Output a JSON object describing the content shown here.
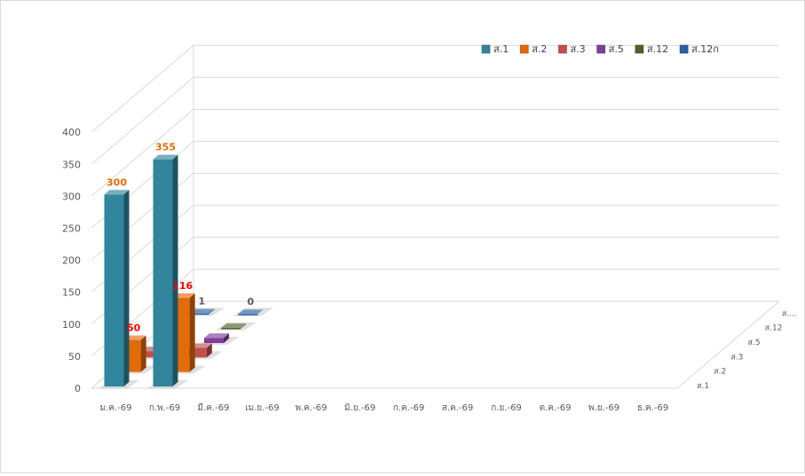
{
  "chart_data": {
    "type": "bar",
    "variant": "3d-column",
    "categories": [
      "ม.ค.-69",
      "ก.พ.-69",
      "มี.ค.-69",
      "เม.ย.-69",
      "พ.ค.-69",
      "มิ.ย.-69",
      "ก.ค.-69",
      "ส.ค.-69",
      "ก.ย.-69",
      "ต.ค.-69",
      "พ.ย.-69",
      "ธ.ค.-69"
    ],
    "series": [
      {
        "name": "ส.1",
        "color": "#31859c",
        "values": [
          300,
          355,
          null,
          null,
          null,
          null,
          null,
          null,
          null,
          null,
          null,
          null
        ]
      },
      {
        "name": "ส.2",
        "color": "#e36c09",
        "values": [
          50,
          116,
          null,
          null,
          null,
          null,
          null,
          null,
          null,
          null,
          null,
          null
        ]
      },
      {
        "name": "ส.3",
        "color": "#c0504d",
        "values": [
          10,
          15,
          null,
          null,
          null,
          null,
          null,
          null,
          null,
          null,
          null,
          null
        ]
      },
      {
        "name": "ส.5",
        "color": "#7f3f98",
        "values": [
          null,
          8,
          null,
          null,
          null,
          null,
          null,
          null,
          null,
          null,
          null,
          null
        ]
      },
      {
        "name": "ส.12",
        "color": "#4f6228",
        "values": [
          null,
          1,
          null,
          null,
          null,
          null,
          null,
          null,
          null,
          null,
          null,
          null
        ]
      },
      {
        "name": "ส.12ก",
        "color": "#2e5fa3",
        "values": [
          1,
          0,
          null,
          null,
          null,
          null,
          null,
          null,
          null,
          null,
          null,
          null
        ]
      }
    ],
    "data_labels": [
      {
        "series": "ส.1",
        "category": "ม.ค.-69",
        "text": "300",
        "color": "#e36c09"
      },
      {
        "series": "ส.1",
        "category": "ก.พ.-69",
        "text": "355",
        "color": "#e36c09"
      },
      {
        "series": "ส.2",
        "category": "ม.ค.-69",
        "text": "50",
        "color": "#ff0000"
      },
      {
        "series": "ส.2",
        "category": "ก.พ.-69",
        "text": "116",
        "color": "#ff0000"
      },
      {
        "series": "ส.12ก",
        "category": "ม.ค.-69",
        "text": "1",
        "color": "#595959"
      },
      {
        "series": "ส.12ก",
        "category": "ก.พ.-69",
        "text": "0",
        "color": "#595959"
      }
    ],
    "yticks": [
      "0",
      "50",
      "100",
      "150",
      "200",
      "250",
      "300",
      "350",
      "400"
    ],
    "ylim": [
      0,
      400
    ],
    "depth_labels": [
      "ส.1",
      "ส.2",
      "ส.3",
      "ส.5",
      "ส.12",
      "ส...."
    ],
    "legend": [
      "ส.1",
      "ส.2",
      "ส.3",
      "ส.5",
      "ส.12",
      "ส.12ก"
    ],
    "legend_position": "top-right",
    "grid": true,
    "title": "",
    "xlabel": "",
    "ylabel": ""
  }
}
